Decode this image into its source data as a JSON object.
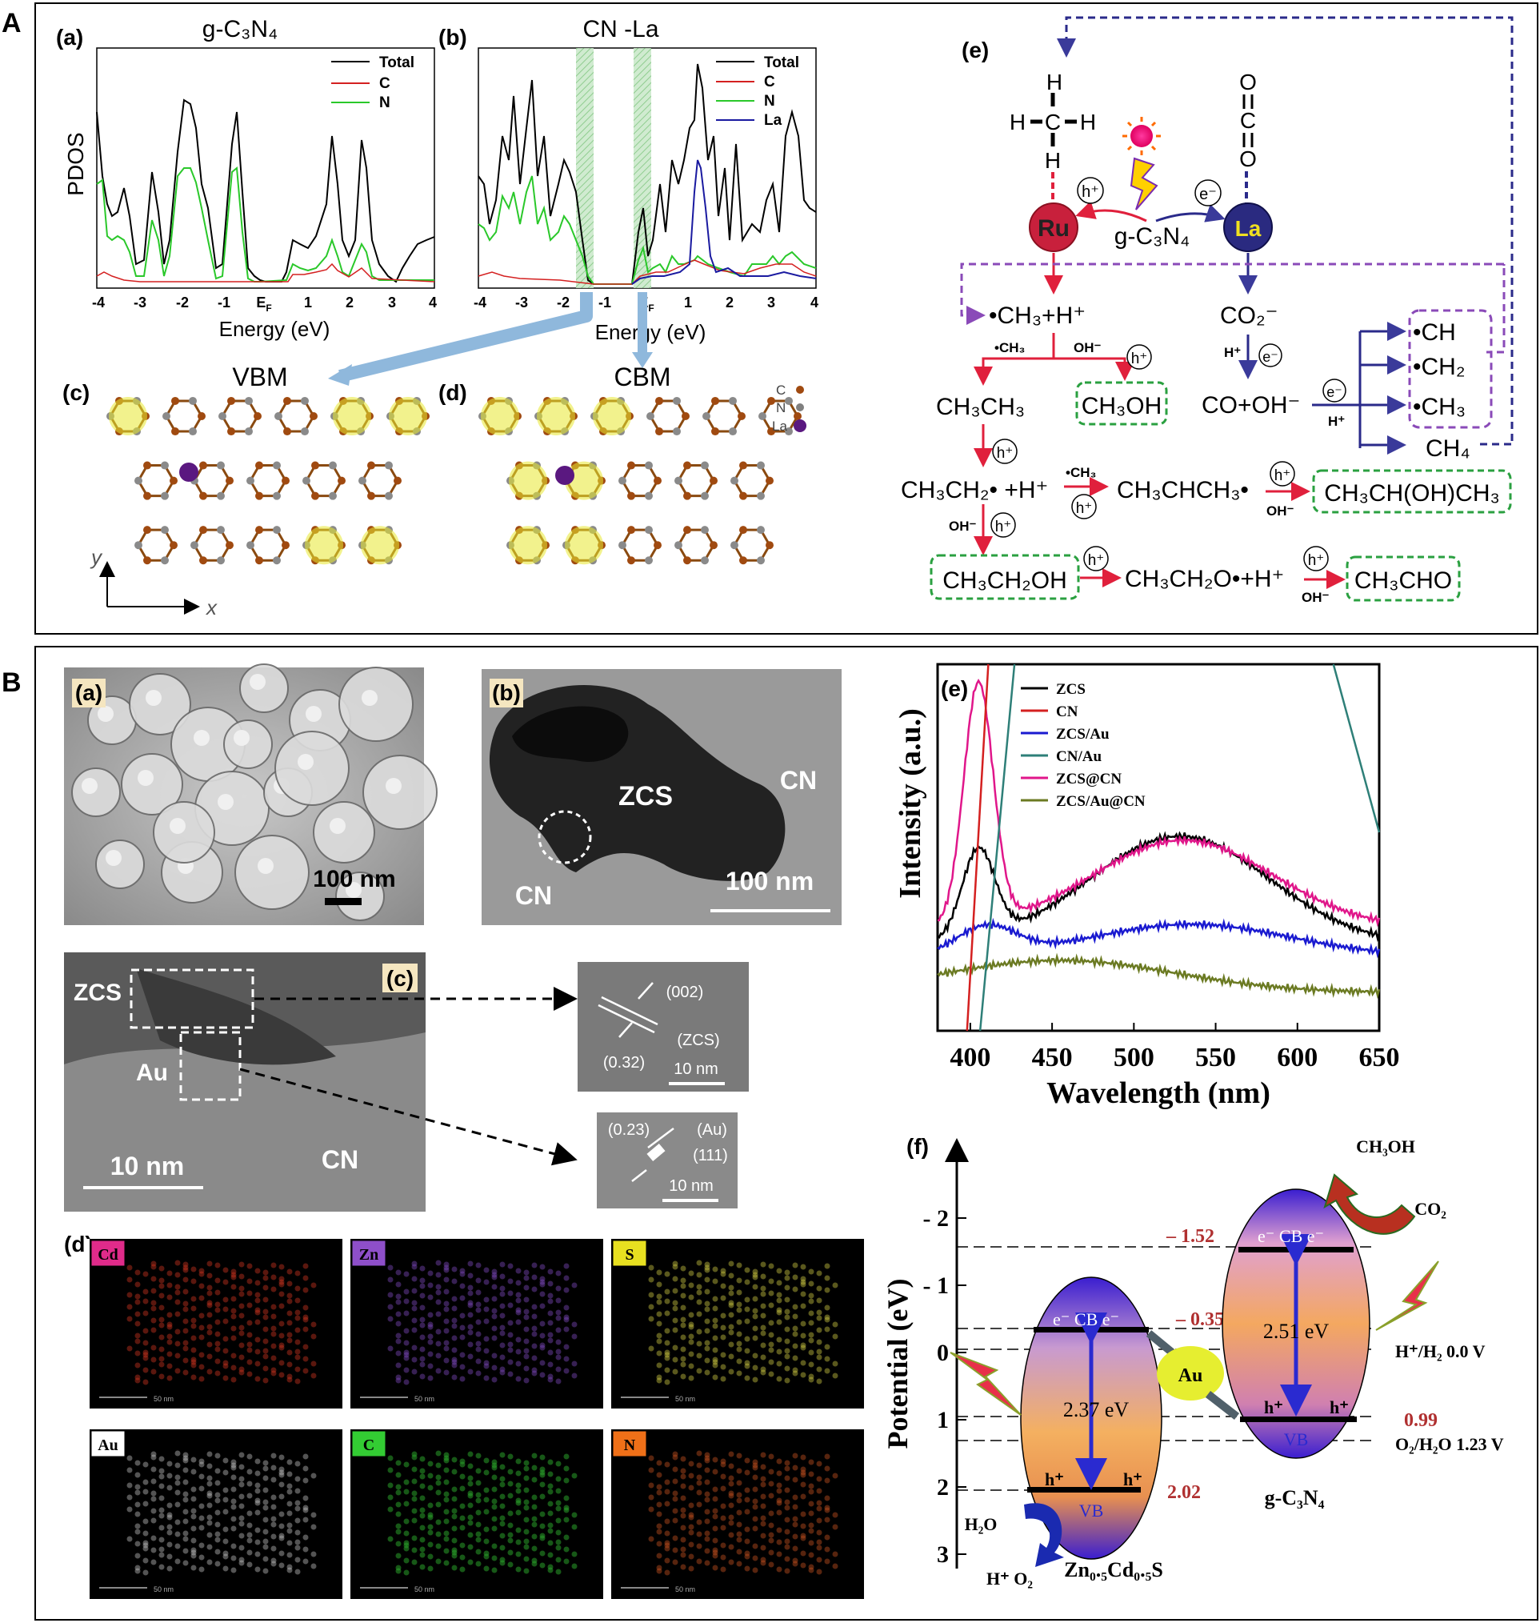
{
  "panelA": {
    "label": "A",
    "a": {
      "label": "(a)",
      "title": "g-C₃N₄",
      "ylabel": "PDOS",
      "xlabel": "Energy (eV)",
      "ticks": [
        "-4",
        "-3",
        "-2",
        "-1",
        "E",
        "1",
        "2",
        "3",
        "4"
      ],
      "ef_sub": "F",
      "legend": [
        "Total",
        "C",
        "N"
      ]
    },
    "b": {
      "label": "(b)",
      "title": "CN -La",
      "xlabel": "Energy (eV)",
      "ticks": [
        "-4",
        "-3",
        "-2",
        "-1",
        "E",
        "1",
        "2",
        "3",
        "4"
      ],
      "ef_sub": "F",
      "legend": [
        "Total",
        "C",
        "N",
        "La"
      ]
    },
    "c": {
      "label": "(c)",
      "title": "VBM",
      "axis_y": "y",
      "axis_x": "x"
    },
    "d": {
      "label": "(d)",
      "title": "CBM",
      "legend": [
        "C",
        "N",
        "La"
      ]
    },
    "e": {
      "label": "(e)",
      "methane": {
        "h_top": "H",
        "h_left": "H",
        "c": "C",
        "h_right": "H",
        "h_bottom": "H"
      },
      "co2": {
        "o1": "O",
        "c": "C",
        "o2": "O"
      },
      "ru": "Ru",
      "la": "La",
      "gcn": "g-C₃N₄",
      "hplus": "h⁺",
      "eminus": "e⁻",
      "ch3_h": "•CH₃+H⁺",
      "co2_minus": "CO₂⁻",
      "small_ch3": "•CH₃",
      "small_oh": "OH⁻",
      "small_h": "H⁺",
      "ethane": "CH₃CH₃",
      "methanol": "CH₃OH",
      "co_oh": "CO+OH⁻",
      "ch": "•CH",
      "ch2": "•CH₂",
      "ch3": "•CH₃",
      "ch4": "CH₄",
      "ethyl": "CH₃CH₂• +H⁺",
      "propyl": "CH₃CHCH₃•",
      "propanol": "CH₃CH(OH)CH₃",
      "ethanol": "CH₃CH₂OH",
      "ethoxy": "CH₃CH₂O•+H⁺",
      "acetaldehyde": "CH₃CHO"
    }
  },
  "panelB": {
    "label": "B",
    "a": {
      "label": "(a)",
      "scale": "100 nm"
    },
    "b": {
      "label": "(b)",
      "zcs": "ZCS",
      "cn1": "CN",
      "cn2": "CN",
      "scale": "100 nm"
    },
    "c": {
      "label": "(c)",
      "zcs": "ZCS",
      "au": "Au",
      "cn": "CN",
      "scale": "10 nm",
      "inset1": {
        "plane": "(002)",
        "phase": "(ZCS)",
        "spacing": "(0.32)",
        "scale": "10 nm"
      },
      "inset2": {
        "spacing": "(0.23)",
        "phase": "(Au)",
        "plane": "(111)",
        "scale": "10 nm"
      }
    },
    "d": {
      "label": "(d)",
      "maps": [
        {
          "element": "Cd",
          "color": "#c8321e",
          "tag": "#e02b8a"
        },
        {
          "element": "Zn",
          "color": "#7a48b8",
          "tag": "#8e4fc9"
        },
        {
          "element": "S",
          "color": "#c8c440",
          "tag": "#e8e020"
        },
        {
          "element": "Au",
          "color": "#bbbbbb",
          "tag": "#ffffff"
        },
        {
          "element": "C",
          "color": "#2aa02a",
          "tag": "#33cc33"
        },
        {
          "element": "N",
          "color": "#c05020",
          "tag": "#f07018"
        }
      ],
      "scale": "50 nm"
    },
    "e": {
      "label": "(e)",
      "ylabel": "Intensity (a.u.)",
      "xlabel": "Wavelength (nm)",
      "xticks": [
        "400",
        "450",
        "500",
        "550",
        "600",
        "650"
      ],
      "legend": [
        {
          "name": "ZCS",
          "color": "#000000"
        },
        {
          "name": "CN",
          "color": "#d42020"
        },
        {
          "name": "ZCS/Au",
          "color": "#1a1ad0"
        },
        {
          "name": "CN/Au",
          "color": "#2e7f78"
        },
        {
          "name": "ZCS@CN",
          "color": "#e0168a"
        },
        {
          "name": "ZCS/Au@CN",
          "color": "#6b7a22"
        }
      ]
    },
    "f": {
      "label": "(f)",
      "ylabel": "Potential (eV)",
      "yticks": [
        "- 2",
        "- 1",
        "0",
        "1",
        "2",
        "3"
      ],
      "zcs_cb": "– 0.35",
      "zcs_vb": "2.02",
      "zcs_gap": "2.37 eV",
      "cn_cb": "– 1.52",
      "cn_vb": "0.99",
      "cn_gap": "2.51 eV",
      "h2": "H⁺/H₂  0.0 V",
      "o2": "O₂/H₂O  1.23 V",
      "au": "Au",
      "cb": "CB",
      "vb": "VB",
      "e": "e⁻",
      "h": "h⁺",
      "zcs_name": "Zn₀.₅Cd₀.₅S",
      "cn_name": "g-C₃N₄",
      "ch3oh": "CH₃OH",
      "co2": "CO₂",
      "h2o": "H₂O",
      "ho2": "H⁺ O₂"
    }
  }
}
